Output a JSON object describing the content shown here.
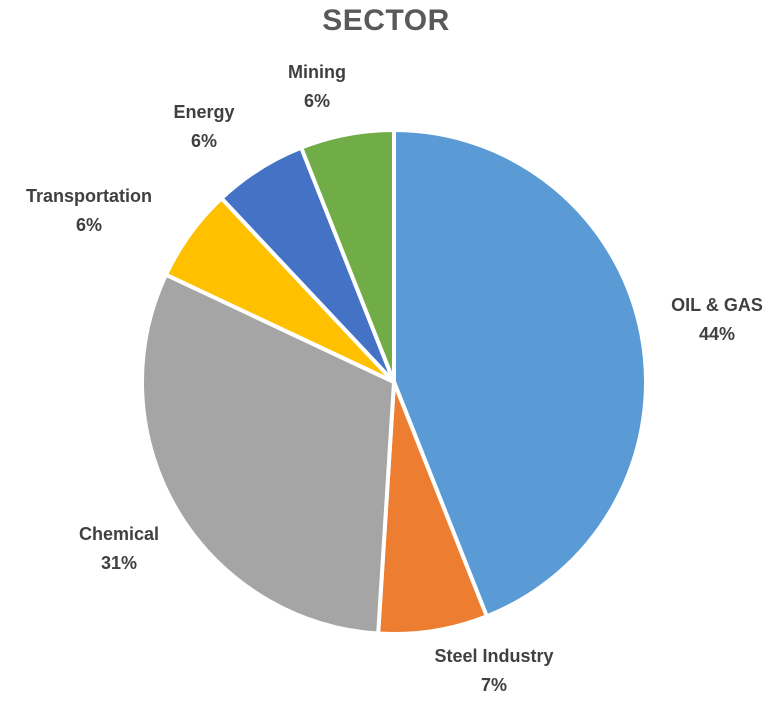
{
  "chart_data": {
    "type": "pie",
    "title": "SECTOR",
    "slices": [
      {
        "name": "OIL & GAS",
        "value": 44,
        "label": "44%",
        "color": "#5B9BD5"
      },
      {
        "name": "Steel Industry",
        "value": 7,
        "label": "7%",
        "color": "#ED7D31"
      },
      {
        "name": "Chemical",
        "value": 31,
        "label": "31%",
        "color": "#A5A5A5"
      },
      {
        "name": "Transportation",
        "value": 6,
        "label": "6%",
        "color": "#FFC000"
      },
      {
        "name": "Energy",
        "value": 6,
        "label": "6%",
        "color": "#4472C4"
      },
      {
        "name": "Mining",
        "value": 6,
        "label": "6%",
        "color": "#70AD47"
      }
    ],
    "legend": "none",
    "data_labels": "outside"
  }
}
